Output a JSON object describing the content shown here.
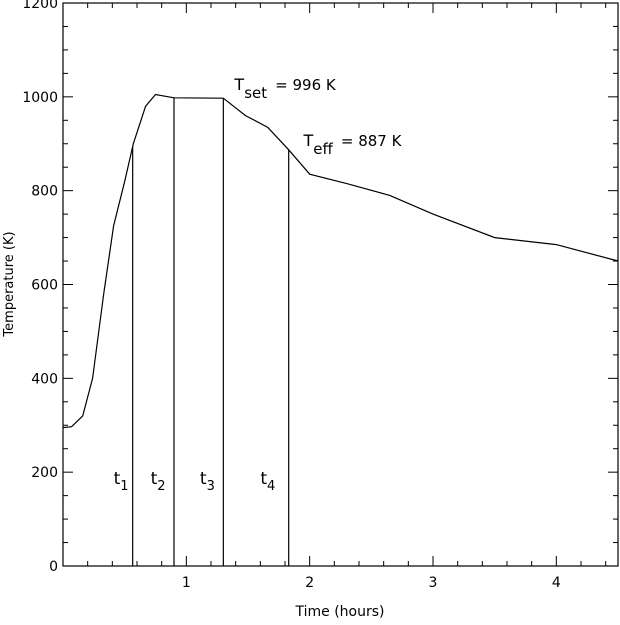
{
  "chart_data": {
    "type": "line",
    "title": "",
    "xlabel": "Time (hours)",
    "ylabel": "Temperature (K)",
    "xlim": [
      0,
      4.5
    ],
    "ylim": [
      0,
      1200
    ],
    "xticks": [
      "1",
      "2",
      "3",
      "4"
    ],
    "xtick_values": [
      1,
      2,
      3,
      4
    ],
    "yticks": [
      "0",
      "200",
      "400",
      "600",
      "800",
      "1000",
      "1200"
    ],
    "ytick_values": [
      0,
      200,
      400,
      600,
      800,
      1000,
      1200
    ],
    "grid": false,
    "series": [
      {
        "x": [
          0.0,
          0.07,
          0.16,
          0.24,
          0.33,
          0.41,
          0.5,
          0.57,
          0.67,
          0.75,
          0.9,
          1.3,
          1.48,
          1.66,
          1.83,
          2.0,
          2.3,
          2.65,
          3.0,
          3.5,
          4.0,
          4.5
        ],
        "y": [
          295,
          297,
          320,
          400,
          580,
          725,
          820,
          900,
          980,
          1005,
          998,
          997,
          960,
          935,
          887,
          835,
          815,
          790,
          750,
          700,
          685,
          650
        ]
      }
    ],
    "vertical_lines": [
      {
        "x": 0.565,
        "label_main": "t",
        "label_sub": "1",
        "label_x": 0.41,
        "label_y": 175
      },
      {
        "x": 0.9,
        "label_main": "t",
        "label_sub": "2",
        "label_x": 0.71,
        "label_y": 175
      },
      {
        "x": 1.3,
        "label_main": "t",
        "label_sub": "3",
        "label_x": 1.11,
        "label_y": 175
      },
      {
        "x": 1.83,
        "label_main": "t",
        "label_sub": "4",
        "label_x": 1.6,
        "label_y": 175
      }
    ],
    "annotations": [
      {
        "main": "T",
        "sub": "set",
        "rest": "= 996 K",
        "x": 1.39,
        "y": 1015
      },
      {
        "main": "T",
        "sub": "eff",
        "rest": "= 887 K",
        "x": 1.95,
        "y": 895
      }
    ]
  }
}
